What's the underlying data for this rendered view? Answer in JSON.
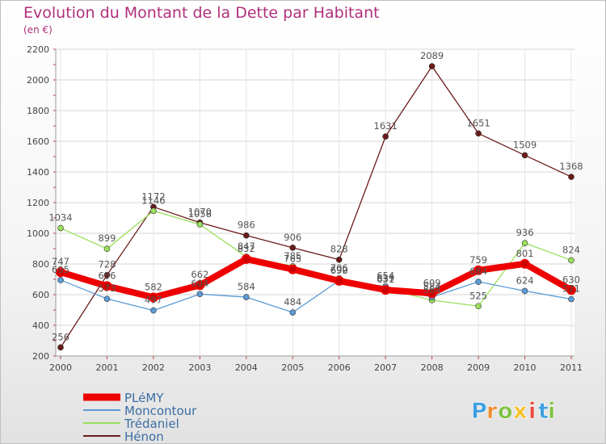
{
  "chart_data": {
    "type": "line",
    "title": "Evolution du Montant de la Dette par Habitant",
    "subtitle": "(en €)",
    "xlabel": "",
    "ylabel": "",
    "categories": [
      "2000",
      "2001",
      "2002",
      "2003",
      "2004",
      "2005",
      "2006",
      "2007",
      "2008",
      "2009",
      "2010",
      "2011"
    ],
    "ylim": [
      200,
      2200
    ],
    "yticks": [
      200,
      400,
      600,
      800,
      1000,
      1200,
      1400,
      1600,
      1800,
      2000,
      2200
    ],
    "grid": true,
    "legend": "bottom-left",
    "series": [
      {
        "name": "Hénon",
        "color": "#6b1a1a",
        "values": [
          256,
          728,
          1172,
          1070,
          986,
          906,
          828,
          1631,
          2089,
          1651,
          1509,
          1368
        ]
      },
      {
        "name": "Trédaniel",
        "color": "#99e05a",
        "values": [
          1034,
          899,
          1146,
          1058,
          847,
          785,
          706,
          639,
          564,
          525,
          936,
          824
        ]
      },
      {
        "name": "Moncontour",
        "color": "#5b9bd5",
        "values": [
          695,
          573,
          497,
          604,
          584,
          484,
          692,
          654,
          584,
          684,
          624,
          571
        ]
      },
      {
        "name": "PLéMY",
        "color": "#ee0000",
        "values": [
          747,
          656,
          582,
          662,
          832,
          765,
          690,
          631,
          609,
          759,
          801,
          630
        ]
      }
    ],
    "legend_order": [
      "PLéMY",
      "Moncontour",
      "Trédaniel",
      "Hénon"
    ]
  },
  "logo": {
    "letters": [
      "P",
      "r",
      "o",
      "x",
      "i",
      "t",
      "i"
    ],
    "colors": [
      "#3fa0e0",
      "#f08a2c",
      "#7dc242",
      "#f5c024",
      "#e8473a",
      "#3fa0e0",
      "#7dc242"
    ]
  }
}
